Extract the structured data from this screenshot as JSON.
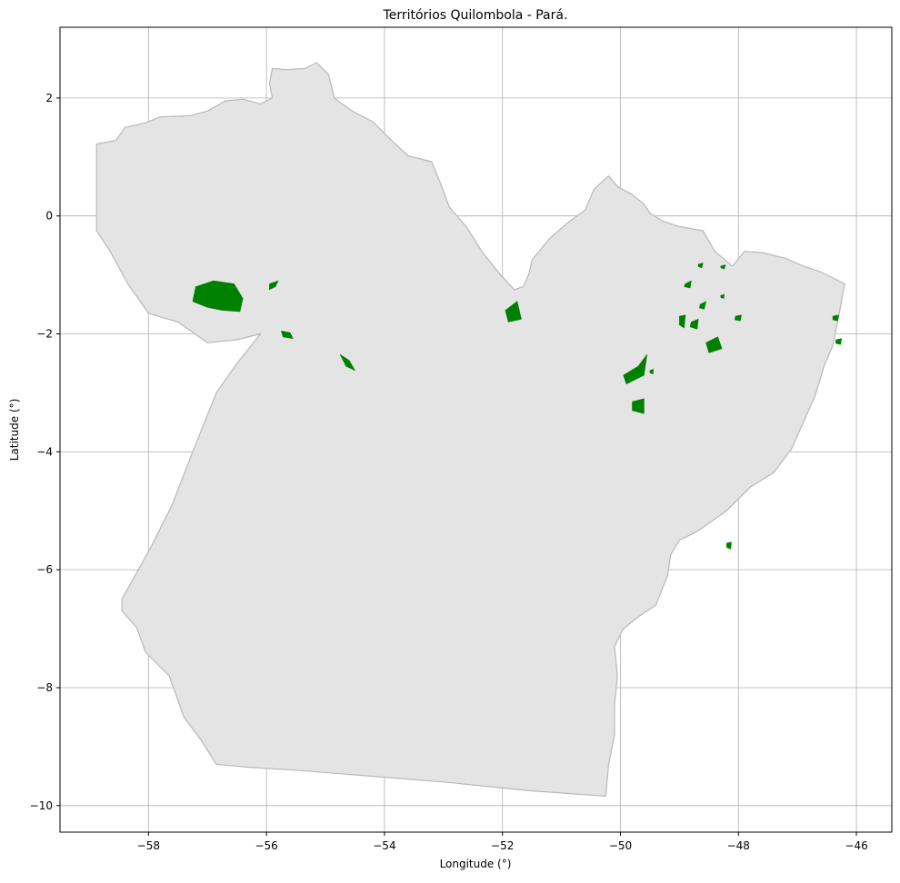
{
  "title": "Territórios Quilombola - Pará.",
  "xlabel": "Longitude (°)",
  "ylabel": "Latitude (°)",
  "colors": {
    "state_fill": "#e4e4e4",
    "state_edge": "#b9b9b9",
    "territory_fill": "#008000",
    "grid": "#b0b0b0"
  },
  "chart_data": {
    "type": "map",
    "title": "Territórios Quilombola - Pará.",
    "xlabel": "Longitude (°)",
    "ylabel": "Latitude (°)",
    "xlim": [
      -59.5,
      -45.4
    ],
    "ylim": [
      -10.45,
      3.2
    ],
    "grid": true,
    "x_ticks": [
      -58,
      -56,
      -54,
      -52,
      -50,
      -48,
      -46
    ],
    "y_ticks": [
      2,
      0,
      -2,
      -4,
      -6,
      -8,
      -10
    ],
    "x_tick_labels": [
      "−58",
      "−56",
      "−54",
      "−52",
      "−50",
      "−48",
      "−46"
    ],
    "y_tick_labels": [
      "2",
      "0",
      "−2",
      "−4",
      "−6",
      "−8",
      "−10"
    ],
    "state_outline": [
      [
        -58.88,
        1.22
      ],
      [
        -58.72,
        1.25
      ],
      [
        -58.55,
        1.28
      ],
      [
        -58.4,
        1.5
      ],
      [
        -58.05,
        1.58
      ],
      [
        -57.8,
        1.68
      ],
      [
        -57.3,
        1.7
      ],
      [
        -57,
        1.78
      ],
      [
        -56.7,
        1.95
      ],
      [
        -56.4,
        1.98
      ],
      [
        -56.1,
        1.9
      ],
      [
        -55.9,
        2.0
      ],
      [
        -55.95,
        2.25
      ],
      [
        -55.9,
        2.5
      ],
      [
        -55.65,
        2.48
      ],
      [
        -55.35,
        2.5
      ],
      [
        -55.15,
        2.6
      ],
      [
        -54.95,
        2.4
      ],
      [
        -54.85,
        2.0
      ],
      [
        -54.55,
        1.78
      ],
      [
        -54.2,
        1.6
      ],
      [
        -53.9,
        1.3
      ],
      [
        -53.6,
        1.02
      ],
      [
        -53.2,
        0.92
      ],
      [
        -53.05,
        0.55
      ],
      [
        -52.9,
        0.15
      ],
      [
        -52.6,
        -0.2
      ],
      [
        -52.35,
        -0.6
      ],
      [
        -52.05,
        -0.98
      ],
      [
        -51.8,
        -1.25
      ],
      [
        -51.65,
        -1.2
      ],
      [
        -51.55,
        -0.98
      ],
      [
        -51.5,
        -0.75
      ],
      [
        -51.2,
        -0.38
      ],
      [
        -50.9,
        -0.12
      ],
      [
        -50.6,
        0.1
      ],
      [
        -50.45,
        0.45
      ],
      [
        -50.2,
        0.68
      ],
      [
        -50.05,
        0.5
      ],
      [
        -49.8,
        0.36
      ],
      [
        -49.6,
        0.2
      ],
      [
        -49.5,
        0.05
      ],
      [
        -49.3,
        -0.08
      ],
      [
        -49.0,
        -0.18
      ],
      [
        -48.6,
        -0.25
      ],
      [
        -48.4,
        -0.6
      ],
      [
        -48.1,
        -0.85
      ],
      [
        -47.9,
        -0.6
      ],
      [
        -47.6,
        -0.62
      ],
      [
        -47.2,
        -0.72
      ],
      [
        -46.9,
        -0.85
      ],
      [
        -46.6,
        -0.95
      ],
      [
        -46.2,
        -1.15
      ],
      [
        -46.3,
        -1.7
      ],
      [
        -46.4,
        -2.2
      ],
      [
        -46.55,
        -2.55
      ],
      [
        -46.7,
        -3.05
      ],
      [
        -46.9,
        -3.5
      ],
      [
        -47.1,
        -3.95
      ],
      [
        -47.4,
        -4.35
      ],
      [
        -47.8,
        -4.6
      ],
      [
        -48.2,
        -5.0
      ],
      [
        -48.7,
        -5.35
      ],
      [
        -49.0,
        -5.5
      ],
      [
        -49.15,
        -5.75
      ],
      [
        -49.2,
        -6.1
      ],
      [
        -49.4,
        -6.6
      ],
      [
        -49.7,
        -6.8
      ],
      [
        -49.95,
        -7.0
      ],
      [
        -50.1,
        -7.3
      ],
      [
        -50.05,
        -7.8
      ],
      [
        -50.1,
        -8.3
      ],
      [
        -50.1,
        -8.8
      ],
      [
        -50.2,
        -9.3
      ],
      [
        -50.25,
        -9.84
      ],
      [
        -51.5,
        -9.75
      ],
      [
        -53.0,
        -9.6
      ],
      [
        -54.5,
        -9.48
      ],
      [
        -55.5,
        -9.4
      ],
      [
        -56.3,
        -9.35
      ],
      [
        -56.85,
        -9.3
      ],
      [
        -57.1,
        -8.9
      ],
      [
        -57.4,
        -8.5
      ],
      [
        -57.65,
        -7.8
      ],
      [
        -58.05,
        -7.4
      ],
      [
        -58.2,
        -6.98
      ],
      [
        -58.45,
        -6.7
      ],
      [
        -58.45,
        -6.5
      ],
      [
        -57.95,
        -5.6
      ],
      [
        -57.6,
        -4.9
      ],
      [
        -57.25,
        -4.0
      ],
      [
        -56.85,
        -3.0
      ],
      [
        -56.5,
        -2.5
      ],
      [
        -56.1,
        -2.0
      ],
      [
        -56.5,
        -2.1
      ],
      [
        -57.0,
        -2.15
      ],
      [
        -57.5,
        -1.8
      ],
      [
        -58.0,
        -1.65
      ],
      [
        -58.35,
        -1.15
      ],
      [
        -58.65,
        -0.6
      ],
      [
        -58.88,
        -0.25
      ]
    ],
    "territories": [
      {
        "points": [
          [
            -57.2,
            -1.2
          ],
          [
            -56.9,
            -1.1
          ],
          [
            -56.55,
            -1.15
          ],
          [
            -56.4,
            -1.4
          ],
          [
            -56.45,
            -1.62
          ],
          [
            -56.75,
            -1.6
          ],
          [
            -57.0,
            -1.55
          ],
          [
            -57.25,
            -1.45
          ]
        ]
      },
      {
        "points": [
          [
            -55.95,
            -1.15
          ],
          [
            -55.8,
            -1.1
          ],
          [
            -55.85,
            -1.2
          ],
          [
            -55.95,
            -1.25
          ]
        ]
      },
      {
        "points": [
          [
            -55.75,
            -1.95
          ],
          [
            -55.6,
            -1.98
          ],
          [
            -55.55,
            -2.08
          ],
          [
            -55.72,
            -2.05
          ]
        ]
      },
      {
        "points": [
          [
            -54.75,
            -2.35
          ],
          [
            -54.6,
            -2.45
          ],
          [
            -54.5,
            -2.62
          ],
          [
            -54.65,
            -2.55
          ]
        ]
      },
      {
        "points": [
          [
            -51.95,
            -1.6
          ],
          [
            -51.75,
            -1.45
          ],
          [
            -51.68,
            -1.75
          ],
          [
            -51.9,
            -1.8
          ]
        ]
      },
      {
        "points": [
          [
            -49.95,
            -2.7
          ],
          [
            -49.7,
            -2.55
          ],
          [
            -49.55,
            -2.35
          ],
          [
            -49.6,
            -2.7
          ],
          [
            -49.9,
            -2.85
          ]
        ]
      },
      {
        "points": [
          [
            -49.8,
            -3.15
          ],
          [
            -49.6,
            -3.1
          ],
          [
            -49.6,
            -3.35
          ],
          [
            -49.8,
            -3.3
          ]
        ]
      },
      {
        "points": [
          [
            -48.55,
            -2.15
          ],
          [
            -48.35,
            -2.05
          ],
          [
            -48.28,
            -2.25
          ],
          [
            -48.5,
            -2.32
          ]
        ]
      },
      {
        "points": [
          [
            -48.9,
            -1.15
          ],
          [
            -48.8,
            -1.1
          ],
          [
            -48.82,
            -1.22
          ],
          [
            -48.92,
            -1.2
          ]
        ]
      },
      {
        "points": [
          [
            -48.8,
            -1.8
          ],
          [
            -48.68,
            -1.75
          ],
          [
            -48.7,
            -1.92
          ],
          [
            -48.82,
            -1.88
          ]
        ]
      },
      {
        "points": [
          [
            -49.0,
            -1.7
          ],
          [
            -48.9,
            -1.68
          ],
          [
            -48.92,
            -1.9
          ],
          [
            -49.0,
            -1.85
          ]
        ]
      },
      {
        "points": [
          [
            -48.65,
            -1.5
          ],
          [
            -48.55,
            -1.45
          ],
          [
            -48.58,
            -1.58
          ],
          [
            -48.66,
            -1.56
          ]
        ]
      },
      {
        "points": [
          [
            -48.05,
            -1.7
          ],
          [
            -47.95,
            -1.68
          ],
          [
            -47.97,
            -1.78
          ],
          [
            -48.06,
            -1.76
          ]
        ]
      },
      {
        "points": [
          [
            -46.4,
            -1.7
          ],
          [
            -46.3,
            -1.68
          ],
          [
            -46.32,
            -1.78
          ],
          [
            -46.4,
            -1.76
          ]
        ]
      },
      {
        "points": [
          [
            -46.35,
            -2.1
          ],
          [
            -46.25,
            -2.08
          ],
          [
            -46.27,
            -2.18
          ],
          [
            -46.35,
            -2.16
          ]
        ]
      },
      {
        "points": [
          [
            -48.68,
            -0.82
          ],
          [
            -48.6,
            -0.8
          ],
          [
            -48.62,
            -0.88
          ],
          [
            -48.68,
            -0.86
          ]
        ]
      },
      {
        "points": [
          [
            -48.3,
            -0.85
          ],
          [
            -48.22,
            -0.83
          ],
          [
            -48.24,
            -0.9
          ],
          [
            -48.3,
            -0.88
          ]
        ]
      },
      {
        "points": [
          [
            -48.2,
            -5.55
          ],
          [
            -48.12,
            -5.53
          ],
          [
            -48.13,
            -5.65
          ],
          [
            -48.2,
            -5.62
          ]
        ]
      },
      {
        "points": [
          [
            -49.5,
            -2.62
          ],
          [
            -49.44,
            -2.6
          ],
          [
            -49.45,
            -2.68
          ],
          [
            -49.5,
            -2.66
          ]
        ]
      },
      {
        "points": [
          [
            -48.3,
            -1.35
          ],
          [
            -48.24,
            -1.33
          ],
          [
            -48.25,
            -1.4
          ],
          [
            -48.3,
            -1.38
          ]
        ]
      }
    ]
  }
}
